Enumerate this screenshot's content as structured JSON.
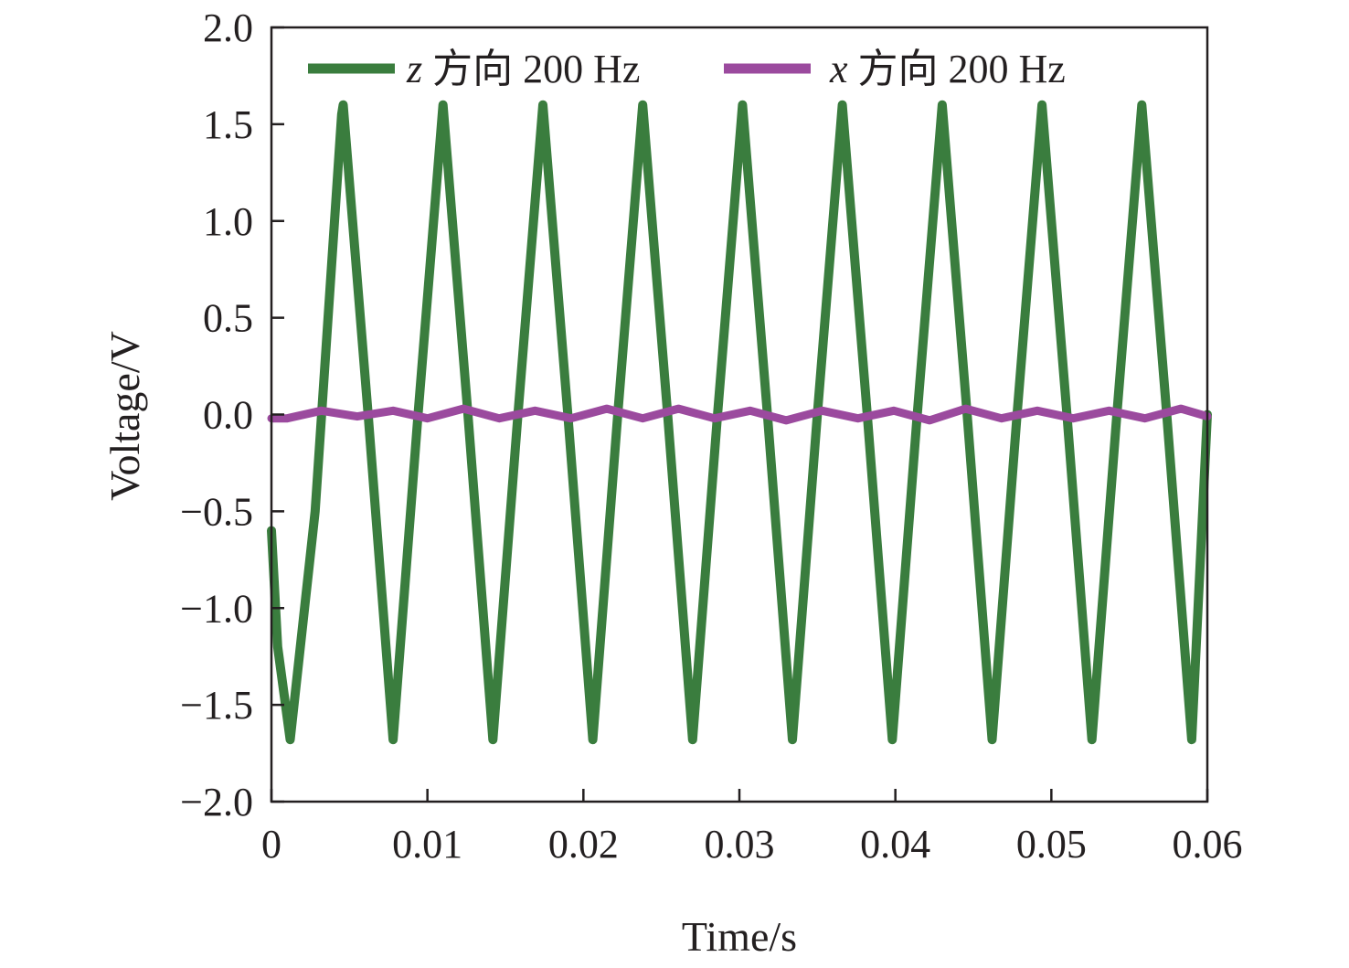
{
  "chart_data": {
    "type": "line",
    "title": "",
    "xlabel": "Time/s",
    "ylabel": "Voltage/V",
    "xlim": [
      0,
      0.06
    ],
    "ylim": [
      -2.0,
      2.0
    ],
    "xticks": [
      0,
      0.01,
      0.02,
      0.03,
      0.04,
      0.05,
      0.06
    ],
    "xtick_labels": [
      "0",
      "0.01",
      "0.02",
      "0.03",
      "0.04",
      "0.05",
      "0.06"
    ],
    "yticks": [
      2.0,
      1.5,
      1.0,
      0.5,
      0.0,
      -0.5,
      -1.0,
      -1.5,
      -2.0
    ],
    "ytick_labels": [
      "2.0",
      "1.5",
      "1.0",
      "0.5",
      "0.0",
      "−0.5",
      "−1.0",
      "−1.5",
      "−2.0"
    ],
    "grid": false,
    "legend_position": "top",
    "series": [
      {
        "name": "z 方向 200 Hz",
        "name_italic": "z",
        "name_rest": " 方向 200 Hz",
        "color": "#3a7d3e",
        "x": [
          0,
          0.0004,
          0.0012,
          0.0028,
          0.0045,
          0.0046,
          0.0062,
          0.0078,
          0.0094,
          0.011,
          0.0126,
          0.0142,
          0.0158,
          0.0174,
          0.019,
          0.0206,
          0.0222,
          0.0238,
          0.0254,
          0.027,
          0.0286,
          0.0302,
          0.0318,
          0.0334,
          0.035,
          0.0366,
          0.0382,
          0.0398,
          0.0414,
          0.043,
          0.0446,
          0.0462,
          0.0478,
          0.0494,
          0.051,
          0.0526,
          0.0542,
          0.0558,
          0.0574,
          0.059,
          0.06
        ],
        "values": [
          -0.6,
          -1.2,
          -1.68,
          -0.5,
          1.55,
          1.6,
          0.0,
          -1.68,
          0.0,
          1.6,
          0.0,
          -1.68,
          0.0,
          1.6,
          0.0,
          -1.68,
          0.0,
          1.6,
          0.0,
          -1.68,
          0.0,
          1.6,
          0.0,
          -1.68,
          0.0,
          1.6,
          0.0,
          -1.68,
          0.0,
          1.6,
          0.0,
          -1.68,
          0.0,
          1.6,
          0.0,
          -1.68,
          0.0,
          1.6,
          0.0,
          -1.68,
          0.0
        ]
      },
      {
        "name": "x 方向 200 Hz",
        "name_italic": "x",
        "name_rest": " 方向 200 Hz",
        "color": "#9b4a9e",
        "x": [
          0,
          0.001,
          0.0032,
          0.0055,
          0.0078,
          0.01,
          0.0123,
          0.0146,
          0.0169,
          0.0192,
          0.0215,
          0.0238,
          0.0261,
          0.0284,
          0.0307,
          0.033,
          0.0353,
          0.0376,
          0.0399,
          0.0422,
          0.0445,
          0.0468,
          0.0491,
          0.0514,
          0.0537,
          0.056,
          0.0583,
          0.06
        ],
        "values": [
          -0.02,
          -0.02,
          0.02,
          -0.01,
          0.02,
          -0.02,
          0.03,
          -0.02,
          0.02,
          -0.02,
          0.03,
          -0.02,
          0.03,
          -0.02,
          0.02,
          -0.03,
          0.02,
          -0.02,
          0.02,
          -0.03,
          0.03,
          -0.02,
          0.02,
          -0.02,
          0.02,
          -0.02,
          0.03,
          -0.01
        ]
      }
    ]
  }
}
